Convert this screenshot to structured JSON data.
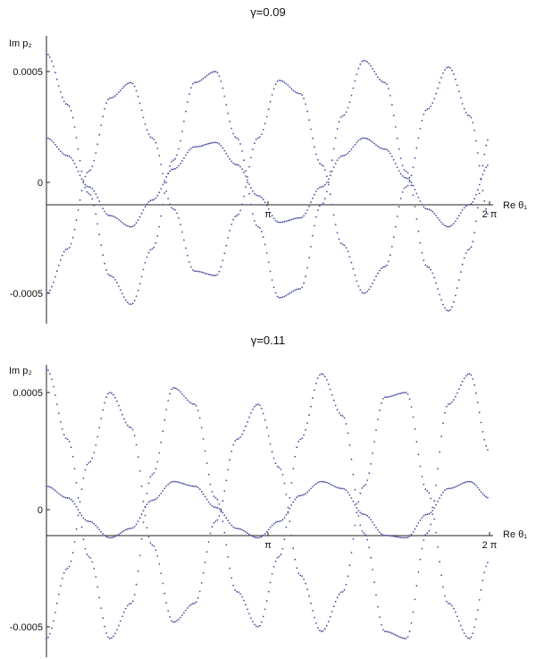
{
  "chart_data": [
    {
      "type": "scatter",
      "title": "γ=0.09",
      "xlabel": "Re θ₁",
      "ylabel": "Im p₂",
      "xlim": [
        0,
        6.2832
      ],
      "ylim": [
        -0.00063,
        0.00062
      ],
      "x_ticks": [
        {
          "value": 3.1416,
          "label": "π"
        },
        {
          "value": 6.2832,
          "label": "2 π"
        }
      ],
      "y_ticks": [
        {
          "value": 0.0005,
          "label": "0.0005"
        },
        {
          "value": 0,
          "label": "0"
        },
        {
          "value": -0.0005,
          "label": "-0.0005"
        }
      ],
      "marker_color": "#4a4ea0",
      "note_values": "dense dotted trajectories; sampled values",
      "series": [
        {
          "x": [
            0.0,
            0.3,
            0.6,
            0.9,
            1.2,
            1.5,
            1.8,
            2.1,
            2.4,
            2.7,
            3.0,
            3.3,
            3.6,
            3.9,
            4.2,
            4.5,
            4.8,
            5.1,
            5.4,
            5.7,
            6.0,
            6.28
          ],
          "y": [
            0.00058,
            0.00035,
            -5e-05,
            -0.00042,
            -0.00055,
            -0.0003,
            0.0001,
            0.00045,
            0.0005,
            0.0002,
            -0.0002,
            -0.00052,
            -0.00048,
            -0.0001,
            0.0003,
            0.00055,
            0.00045,
            5e-05,
            -0.00038,
            -0.00058,
            -0.0003,
            0.0002
          ]
        },
        {
          "x": [
            0.0,
            0.3,
            0.6,
            0.9,
            1.2,
            1.5,
            1.8,
            2.1,
            2.4,
            2.7,
            3.0,
            3.3,
            3.6,
            3.9,
            4.2,
            4.5,
            4.8,
            5.1,
            5.4,
            5.7,
            6.0,
            6.28
          ],
          "y": [
            -0.0005,
            -0.0003,
            5e-05,
            0.00038,
            0.00045,
            0.0002,
            -0.00012,
            -0.0004,
            -0.00042,
            -0.00015,
            0.0002,
            0.00046,
            0.0004,
            8e-05,
            -0.00028,
            -0.0005,
            -0.00038,
            -2e-05,
            0.00033,
            0.00052,
            0.0003,
            -0.00015
          ]
        },
        {
          "x": [
            0.0,
            0.3,
            0.6,
            0.9,
            1.2,
            1.5,
            1.8,
            2.1,
            2.4,
            2.7,
            3.0,
            3.3,
            3.6,
            3.9,
            4.2,
            4.5,
            4.8,
            5.1,
            5.4,
            5.7,
            6.0,
            6.28
          ],
          "y": [
            0.0002,
            0.00012,
            -2e-05,
            -0.00015,
            -0.0002,
            -8e-05,
            6e-05,
            0.00016,
            0.00018,
            8e-05,
            -6e-05,
            -0.00018,
            -0.00016,
            -2e-05,
            0.00012,
            0.0002,
            0.00015,
            2e-05,
            -0.00012,
            -0.0002,
            -0.0001,
            8e-05
          ]
        }
      ]
    },
    {
      "type": "scatter",
      "title": "γ=0.11",
      "xlabel": "Re θ₁",
      "ylabel": "Im p₂",
      "xlim": [
        0,
        6.2832
      ],
      "ylim": [
        -0.00065,
        0.00062
      ],
      "x_ticks": [
        {
          "value": 3.1416,
          "label": "π"
        },
        {
          "value": 6.2832,
          "label": "2 π"
        }
      ],
      "y_ticks": [
        {
          "value": 0.0005,
          "label": "0.0005"
        },
        {
          "value": 0,
          "label": "0"
        },
        {
          "value": -0.0005,
          "label": "-0.0005"
        }
      ],
      "marker_color": "#4a4ea0",
      "note_values": "dense dotted trajectories; sampled values",
      "series": [
        {
          "x": [
            0.0,
            0.3,
            0.6,
            0.9,
            1.2,
            1.5,
            1.8,
            2.1,
            2.4,
            2.7,
            3.0,
            3.3,
            3.6,
            3.9,
            4.2,
            4.5,
            4.8,
            5.1,
            5.4,
            5.7,
            6.0,
            6.28
          ],
          "y": [
            0.0006,
            0.0003,
            -0.0002,
            -0.00055,
            -0.0004,
            0.00015,
            0.00052,
            0.00045,
            5e-05,
            -0.00035,
            -0.0005,
            -0.0002,
            0.0003,
            0.00058,
            0.0004,
            -0.0001,
            -0.00052,
            -0.00055,
            -0.0001,
            0.00045,
            0.00058,
            0.00025
          ]
        },
        {
          "x": [
            0.0,
            0.3,
            0.6,
            0.9,
            1.2,
            1.5,
            1.8,
            2.1,
            2.4,
            2.7,
            3.0,
            3.3,
            3.6,
            3.9,
            4.2,
            4.5,
            4.8,
            5.1,
            5.4,
            5.7,
            6.0,
            6.28
          ],
          "y": [
            -0.00055,
            -0.00025,
            0.0002,
            0.0005,
            0.00035,
            -0.00015,
            -0.00048,
            -0.0004,
            -5e-05,
            0.0003,
            0.00045,
            0.00018,
            -0.00028,
            -0.00052,
            -0.00035,
            0.0001,
            0.00048,
            0.0005,
            8e-05,
            -0.0004,
            -0.00055,
            -0.00022
          ]
        },
        {
          "x": [
            0.0,
            0.3,
            0.6,
            0.9,
            1.2,
            1.5,
            1.8,
            2.1,
            2.4,
            2.7,
            3.0,
            3.3,
            3.6,
            3.9,
            4.2,
            4.5,
            4.8,
            5.1,
            5.4,
            5.7,
            6.0,
            6.28
          ],
          "y": [
            0.0001,
            5e-05,
            -5e-05,
            -0.00012,
            -8e-05,
            4e-05,
            0.00012,
            0.0001,
            1e-05,
            -8e-05,
            -0.00012,
            -5e-05,
            6e-05,
            0.00012,
            9e-05,
            -2e-05,
            -0.00011,
            -0.00012,
            -2e-05,
            9e-05,
            0.00012,
            5e-05
          ]
        }
      ]
    }
  ]
}
